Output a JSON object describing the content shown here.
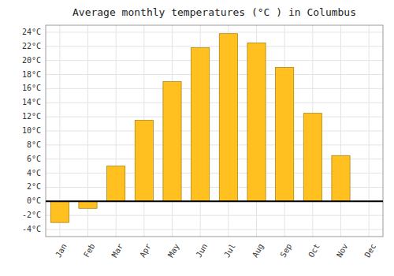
{
  "chart_data": {
    "type": "bar",
    "title": "Average monthly temperatures (°C ) in Columbus",
    "categories": [
      "Jan",
      "Feb",
      "Mar",
      "Apr",
      "May",
      "Jun",
      "Jul",
      "Aug",
      "Sep",
      "Oct",
      "Nov",
      "Dec"
    ],
    "values": [
      -3.0,
      -1.0,
      5.0,
      11.5,
      17.0,
      21.8,
      23.8,
      22.5,
      19.0,
      12.5,
      6.5,
      0.0
    ],
    "color": "#FFC020",
    "ylim": [
      -5,
      25
    ],
    "yticks": [
      {
        "value": -4,
        "label": "-4°C"
      },
      {
        "value": -2,
        "label": "-2°C"
      },
      {
        "value": 0,
        "label": "0°C"
      },
      {
        "value": 2,
        "label": "2°C"
      },
      {
        "value": 4,
        "label": "4°C"
      },
      {
        "value": 6,
        "label": "6°C"
      },
      {
        "value": 8,
        "label": "8°C"
      },
      {
        "value": 10,
        "label": "10°C"
      },
      {
        "value": 12,
        "label": "12°C"
      },
      {
        "value": 14,
        "label": "14°C"
      },
      {
        "value": 16,
        "label": "16°C"
      },
      {
        "value": 18,
        "label": "18°C"
      },
      {
        "value": 20,
        "label": "20°C"
      },
      {
        "value": 22,
        "label": "22°C"
      },
      {
        "value": 24,
        "label": "24°C"
      }
    ],
    "grid": true
  }
}
